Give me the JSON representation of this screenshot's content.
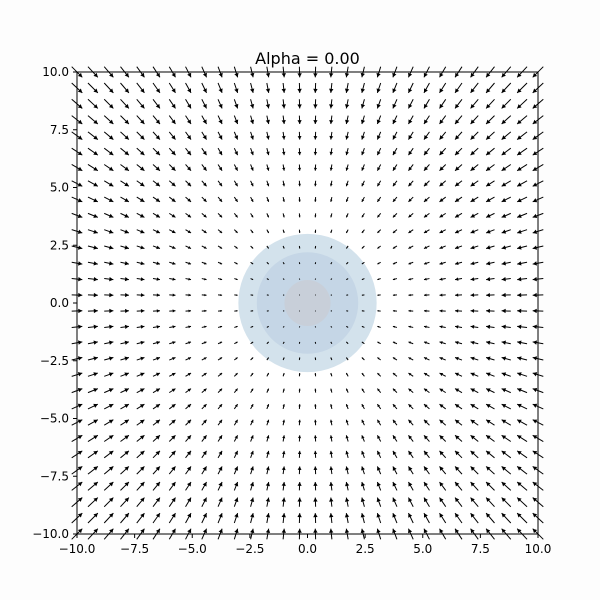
{
  "chart_data": {
    "type": "quiver",
    "title": "Alpha = 0.00",
    "xlabel": "",
    "ylabel": "",
    "xlim": [
      -10,
      10
    ],
    "ylim": [
      -10,
      10
    ],
    "xticks": [
      -10,
      -7.5,
      -5,
      -2.5,
      0,
      2.5,
      5,
      7.5,
      10
    ],
    "yticks": [
      -10,
      -7.5,
      -5,
      -2.5,
      0,
      2.5,
      5,
      7.5,
      10
    ],
    "xtick_labels": [
      "−10.0",
      "−7.5",
      "−5.0",
      "−2.5",
      "0.0",
      "2.5",
      "5.0",
      "7.5",
      "10.0"
    ],
    "ytick_labels": [
      "−10.0",
      "−7.5",
      "−5.0",
      "−2.5",
      "0.0",
      "2.5",
      "5.0",
      "7.5",
      "10.0"
    ],
    "grid": false,
    "vector_field": {
      "x_range": [
        -10,
        10
      ],
      "y_range": [
        -10,
        10
      ],
      "samples_per_axis": 30,
      "field": "radial inward flow toward the origin, magnitude increasing with distance",
      "color": "#000000"
    },
    "contours": [
      {
        "level": 1,
        "radius": 3.0,
        "color": "#d3e2ec"
      },
      {
        "level": 2,
        "radius": 2.2,
        "color": "#c5d6e6"
      },
      {
        "level": 3,
        "radius": 1.0,
        "color": "#c8cfd9"
      }
    ],
    "background": "#fdfdfd",
    "axes_face": "#ffffff"
  }
}
